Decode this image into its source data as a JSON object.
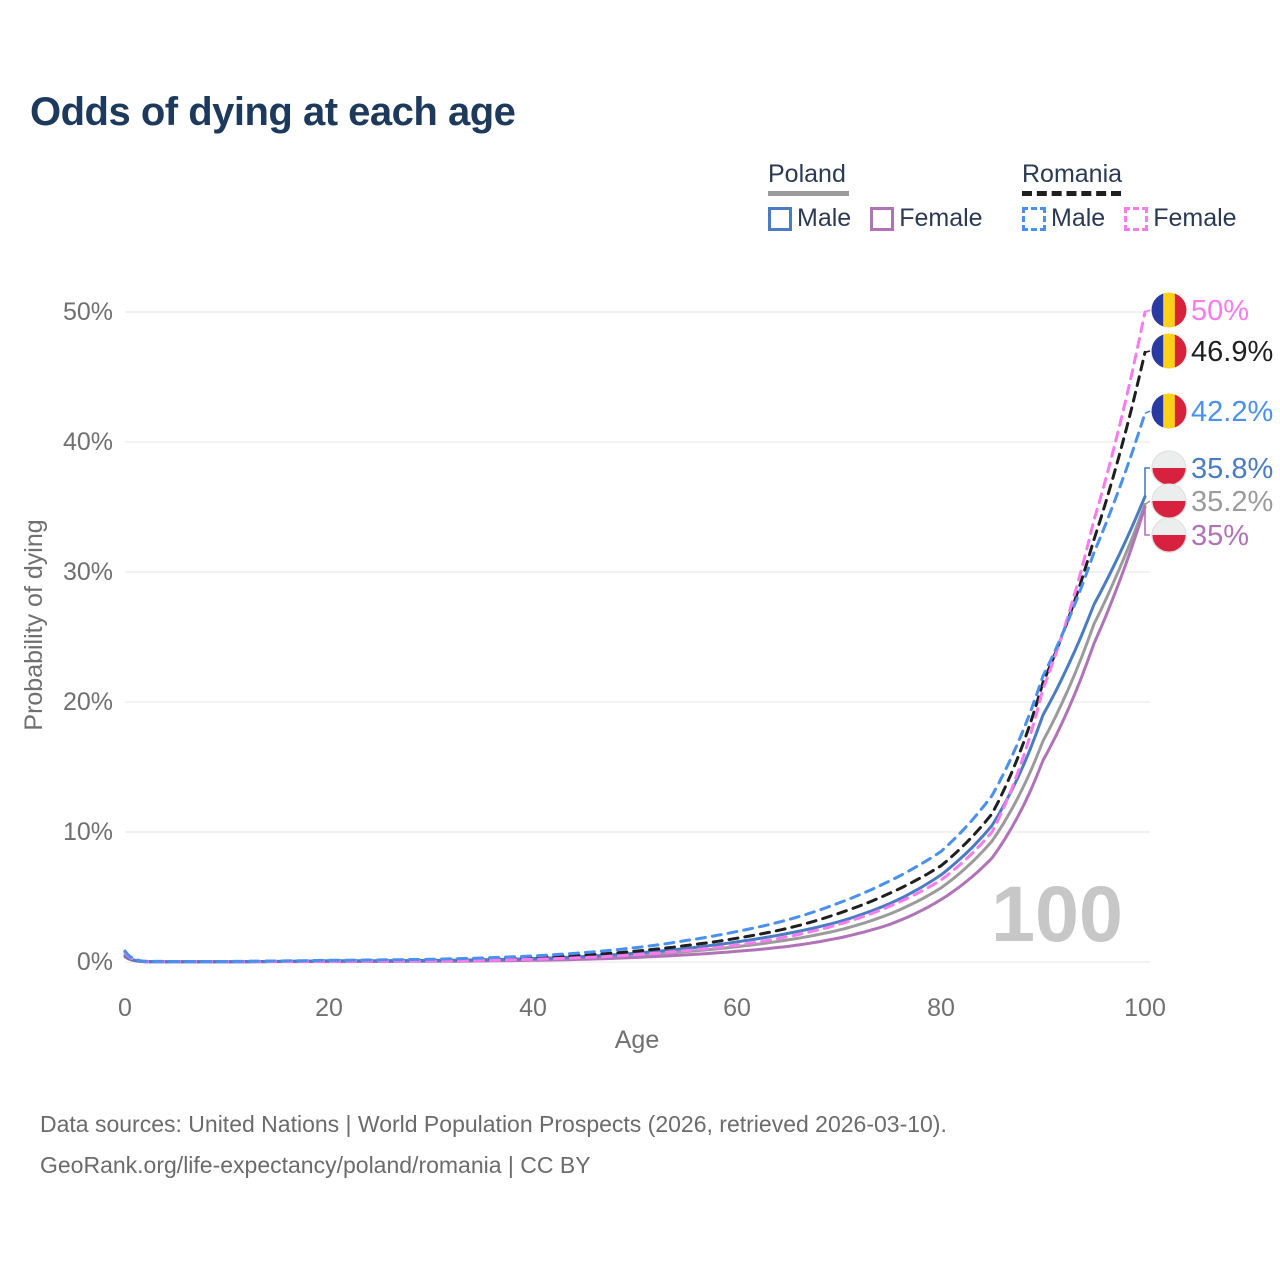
{
  "title": "Odds of dying at each age",
  "watermark": "100",
  "legend": {
    "groups": [
      {
        "label": "Poland",
        "line_style": "solid",
        "line_color": "#9b9b9b",
        "items": [
          {
            "label": "Male",
            "color": "#4a7cc2",
            "style": "solid"
          },
          {
            "label": "Female",
            "color": "#b073b8",
            "style": "solid"
          }
        ]
      },
      {
        "label": "Romania",
        "line_style": "dashed",
        "line_color": "#1f1f1f",
        "items": [
          {
            "label": "Male",
            "color": "#4a90ee",
            "style": "dashed"
          },
          {
            "label": "Female",
            "color": "#f97bef",
            "style": "dashed"
          }
        ]
      }
    ]
  },
  "footer": {
    "line1": "Data sources: United Nations | World Population Prospects (2026, retrieved 2026-03-10).",
    "line2": "GeoRank.org/life-expectancy/poland/romania | CC BY"
  },
  "chart_data": {
    "type": "line",
    "title": "Odds of dying at each age",
    "xlabel": "Age",
    "ylabel": "Probability of dying",
    "xlim": [
      0,
      100
    ],
    "ylim": [
      0,
      50
    ],
    "x_ticks": [
      0,
      20,
      40,
      60,
      80,
      100
    ],
    "y_ticks": [
      "0%",
      "10%",
      "20%",
      "30%",
      "40%",
      "50%"
    ],
    "grid": "horizontal",
    "legend_position": "top-right",
    "x": [
      0,
      2,
      5,
      10,
      15,
      20,
      25,
      30,
      35,
      40,
      45,
      50,
      55,
      60,
      65,
      70,
      75,
      80,
      85,
      90,
      95,
      100
    ],
    "series": [
      {
        "id": "poland-total",
        "name": "Poland total",
        "country": "Poland",
        "color": "#9b9b9b",
        "dash": "solid",
        "flag": "poland-flag-icon",
        "end_label": "35.2%",
        "end_label_color": "#9b9b9b",
        "values": [
          0.45,
          0.025,
          0.018,
          0.018,
          0.04,
          0.06,
          0.07,
          0.09,
          0.13,
          0.2,
          0.32,
          0.52,
          0.8,
          1.18,
          1.7,
          2.45,
          3.7,
          5.7,
          9.3,
          17.0,
          26.0,
          35.2
        ]
      },
      {
        "id": "poland-female",
        "name": "Poland female",
        "country": "Poland",
        "color": "#b073b8",
        "dash": "solid",
        "flag": "poland-flag-icon",
        "end_label": "35%",
        "end_label_color": "#b073b8",
        "values": [
          0.4,
          0.02,
          0.015,
          0.015,
          0.03,
          0.03,
          0.04,
          0.05,
          0.08,
          0.13,
          0.21,
          0.35,
          0.55,
          0.82,
          1.2,
          1.85,
          2.9,
          4.8,
          8.0,
          15.5,
          24.5,
          35.0
        ]
      },
      {
        "id": "poland-male",
        "name": "Poland male",
        "country": "Poland",
        "color": "#4a7cc2",
        "dash": "solid",
        "flag": "poland-flag-icon",
        "end_label": "35.8%",
        "end_label_color": "#4a7cc2",
        "values": [
          0.5,
          0.03,
          0.02,
          0.02,
          0.05,
          0.09,
          0.1,
          0.12,
          0.17,
          0.26,
          0.42,
          0.68,
          1.05,
          1.55,
          2.2,
          3.1,
          4.5,
          6.7,
          10.5,
          19.0,
          27.5,
          35.8
        ]
      },
      {
        "id": "romania-total",
        "name": "Romania total",
        "country": "Romania",
        "color": "#1f1f1f",
        "dash": "dashed",
        "flag": "romania-flag-icon",
        "end_label": "46.9%",
        "end_label_color": "#1f1f1f",
        "values": [
          0.78,
          0.045,
          0.035,
          0.035,
          0.06,
          0.09,
          0.11,
          0.15,
          0.22,
          0.34,
          0.53,
          0.83,
          1.27,
          1.83,
          2.6,
          3.75,
          5.3,
          7.4,
          11.4,
          21.5,
          32.5,
          46.9
        ]
      },
      {
        "id": "romania-female",
        "name": "Romania female",
        "country": "Romania",
        "color": "#f97bef",
        "dash": "dashed",
        "flag": "romania-flag-icon",
        "end_label": "50%",
        "end_label_color": "#f97bef",
        "values": [
          0.7,
          0.04,
          0.03,
          0.03,
          0.04,
          0.05,
          0.06,
          0.08,
          0.13,
          0.21,
          0.34,
          0.56,
          0.88,
          1.3,
          1.95,
          2.9,
          4.3,
          6.3,
          10.0,
          21.0,
          34.0,
          50.0
        ]
      },
      {
        "id": "romania-male",
        "name": "Romania male",
        "country": "Romania",
        "color": "#4a90ee",
        "dash": "dashed",
        "flag": "romania-flag-icon",
        "end_label": "42.2%",
        "end_label_color": "#4a90ee",
        "values": [
          0.85,
          0.05,
          0.04,
          0.04,
          0.08,
          0.13,
          0.16,
          0.21,
          0.31,
          0.47,
          0.72,
          1.1,
          1.65,
          2.35,
          3.25,
          4.55,
          6.25,
          8.5,
          12.8,
          22.0,
          31.5,
          42.2
        ]
      }
    ]
  }
}
